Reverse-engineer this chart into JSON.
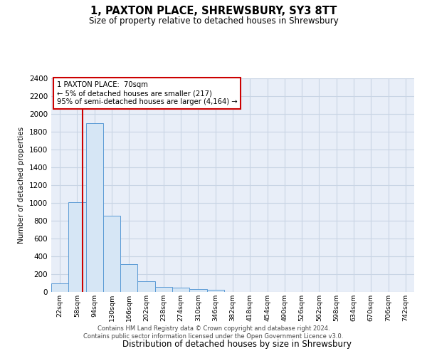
{
  "title": "1, PAXTON PLACE, SHREWSBURY, SY3 8TT",
  "subtitle": "Size of property relative to detached houses in Shrewsbury",
  "xlabel": "Distribution of detached houses by size in Shrewsbury",
  "ylabel": "Number of detached properties",
  "footer_line1": "Contains HM Land Registry data © Crown copyright and database right 2024.",
  "footer_line2": "Contains public sector information licensed under the Open Government Licence v3.0.",
  "bin_labels": [
    "22sqm",
    "58sqm",
    "94sqm",
    "130sqm",
    "166sqm",
    "202sqm",
    "238sqm",
    "274sqm",
    "310sqm",
    "346sqm",
    "382sqm",
    "418sqm",
    "454sqm",
    "490sqm",
    "526sqm",
    "562sqm",
    "598sqm",
    "634sqm",
    "670sqm",
    "706sqm",
    "742sqm"
  ],
  "bar_values": [
    100,
    1010,
    1900,
    860,
    315,
    120,
    60,
    50,
    35,
    25,
    0,
    0,
    0,
    0,
    0,
    0,
    0,
    0,
    0,
    0,
    0
  ],
  "bar_color": "#d6e6f5",
  "bar_edge_color": "#5b9bd5",
  "ylim": [
    0,
    2400
  ],
  "yticks": [
    0,
    200,
    400,
    600,
    800,
    1000,
    1200,
    1400,
    1600,
    1800,
    2000,
    2200,
    2400
  ],
  "property_label": "1 PAXTON PLACE:  70sqm",
  "annotation_line1": "← 5% of detached houses are smaller (217)",
  "annotation_line2": "95% of semi-detached houses are larger (4,164) →",
  "vline_color": "#cc0000",
  "vline_x": 1.33,
  "annotation_box_color": "#cc0000",
  "grid_color": "#c8d4e4",
  "plot_bg_color": "#e8eef8"
}
